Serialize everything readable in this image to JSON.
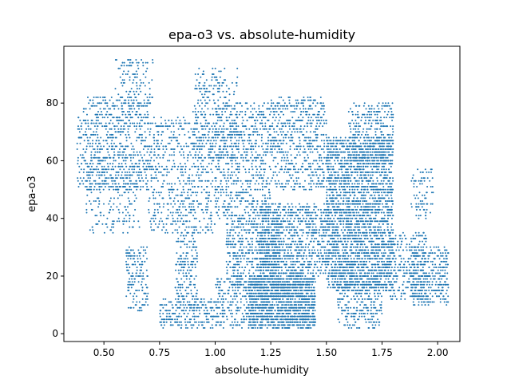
{
  "chart_data": {
    "type": "scatter",
    "title": "epa-o3 vs. absolute-humidity",
    "xlabel": "absolute-humidity",
    "ylabel": "epa-o3",
    "xlim": [
      0.32,
      2.1
    ],
    "ylim": [
      -2.7,
      99.7
    ],
    "xticks": [
      0.5,
      0.75,
      1.0,
      1.25,
      1.5,
      1.75,
      2.0
    ],
    "xtick_labels": [
      "0.50",
      "0.75",
      "1.00",
      "1.25",
      "1.50",
      "1.75",
      "2.00"
    ],
    "yticks": [
      0,
      20,
      40,
      60,
      80
    ],
    "ytick_labels": [
      "0",
      "20",
      "40",
      "60",
      "80"
    ],
    "grid": false,
    "legend": "none",
    "marker_color": "#1f77b4",
    "seed": 12345,
    "clusters": [
      {
        "x": [
          0.38,
          0.7
        ],
        "y": [
          50,
          82
        ],
        "n": 700
      },
      {
        "x": [
          0.55,
          0.72
        ],
        "y": [
          78,
          95
        ],
        "n": 120
      },
      {
        "x": [
          0.42,
          0.66
        ],
        "y": [
          35,
          62
        ],
        "n": 220
      },
      {
        "x": [
          0.6,
          0.7
        ],
        "y": [
          8,
          30
        ],
        "n": 160
      },
      {
        "x": [
          0.7,
          1.0
        ],
        "y": [
          35,
          75
        ],
        "n": 650
      },
      {
        "x": [
          0.75,
          1.0
        ],
        "y": [
          2,
          12
        ],
        "n": 250
      },
      {
        "x": [
          0.82,
          0.92
        ],
        "y": [
          10,
          35
        ],
        "n": 180
      },
      {
        "x": [
          0.9,
          1.1
        ],
        "y": [
          60,
          92
        ],
        "n": 280
      },
      {
        "x": [
          1.0,
          1.25
        ],
        "y": [
          40,
          80
        ],
        "n": 700
      },
      {
        "x": [
          1.0,
          1.15
        ],
        "y": [
          2,
          20
        ],
        "n": 200
      },
      {
        "x": [
          1.05,
          1.3
        ],
        "y": [
          15,
          40
        ],
        "n": 600
      },
      {
        "x": [
          1.15,
          1.45
        ],
        "y": [
          2,
          20
        ],
        "n": 1500
      },
      {
        "x": [
          1.2,
          1.5
        ],
        "y": [
          20,
          45
        ],
        "n": 900
      },
      {
        "x": [
          1.25,
          1.5
        ],
        "y": [
          50,
          82
        ],
        "n": 600
      },
      {
        "x": [
          1.5,
          1.8
        ],
        "y": [
          15,
          68
        ],
        "n": 2600
      },
      {
        "x": [
          1.55,
          1.75
        ],
        "y": [
          2,
          20
        ],
        "n": 300
      },
      {
        "x": [
          1.6,
          1.8
        ],
        "y": [
          60,
          80
        ],
        "n": 300
      },
      {
        "x": [
          1.78,
          1.95
        ],
        "y": [
          12,
          35
        ],
        "n": 300
      },
      {
        "x": [
          1.88,
          2.05
        ],
        "y": [
          10,
          30
        ],
        "n": 350
      },
      {
        "x": [
          1.88,
          1.98
        ],
        "y": [
          40,
          57
        ],
        "n": 80
      }
    ]
  }
}
